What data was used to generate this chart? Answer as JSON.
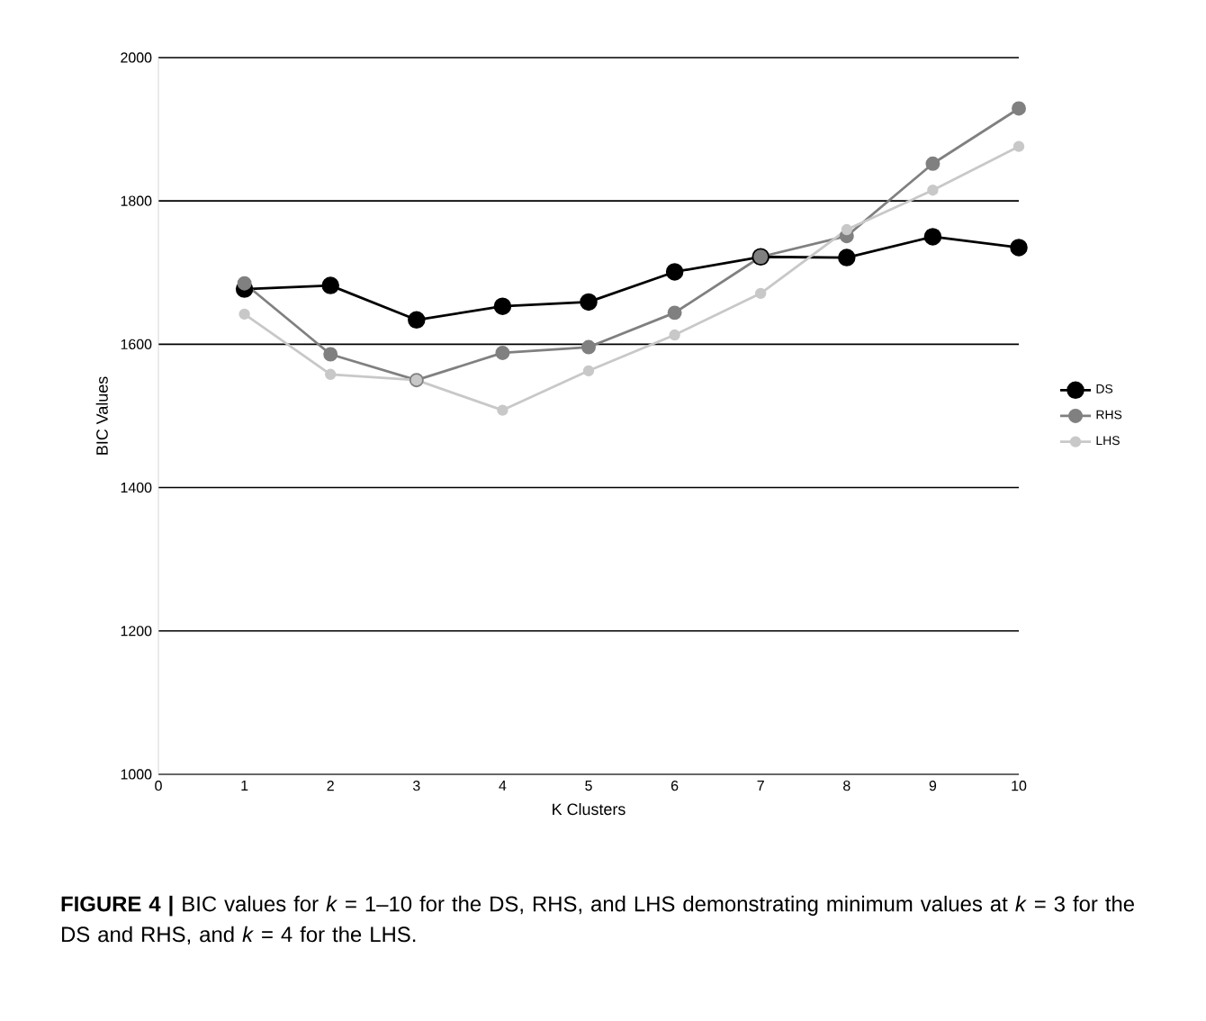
{
  "chart_data": {
    "type": "line",
    "xlabel": "K Clusters",
    "ylabel": "BIC Values",
    "x": [
      1,
      2,
      3,
      4,
      5,
      6,
      7,
      8,
      9,
      10
    ],
    "series": [
      {
        "name": "DS",
        "color": "#000000",
        "values": [
          1677,
          1682,
          1634,
          1653,
          1659,
          1701,
          1722,
          1721,
          1750,
          1735
        ]
      },
      {
        "name": "RHS",
        "color": "#808080",
        "values": [
          1685,
          1586,
          1550,
          1588,
          1596,
          1644,
          1722,
          1751,
          1852,
          1929
        ]
      },
      {
        "name": "LHS",
        "color": "#c8c8c8",
        "values": [
          1642,
          1558,
          1550,
          1508,
          1563,
          1613,
          1671,
          1760,
          1815,
          1876
        ]
      }
    ],
    "xlim": [
      0,
      10
    ],
    "xticks": [
      0,
      1,
      2,
      3,
      4,
      5,
      6,
      7,
      8,
      9,
      10
    ],
    "ylim": [
      1000,
      2000
    ],
    "yticks": [
      1000,
      1200,
      1400,
      1600,
      1800,
      2000
    ],
    "grid": "y",
    "legend": "right",
    "marker": "circle",
    "line_style": "solid",
    "annotations": [
      "**FIGURE 4 |** BIC values for *k* = 1–10 for the DS, RHS, and LHS demonstrating minimum values at *k* = 3 for the DS and RHS, and *k* = 4 for the LHS."
    ]
  }
}
